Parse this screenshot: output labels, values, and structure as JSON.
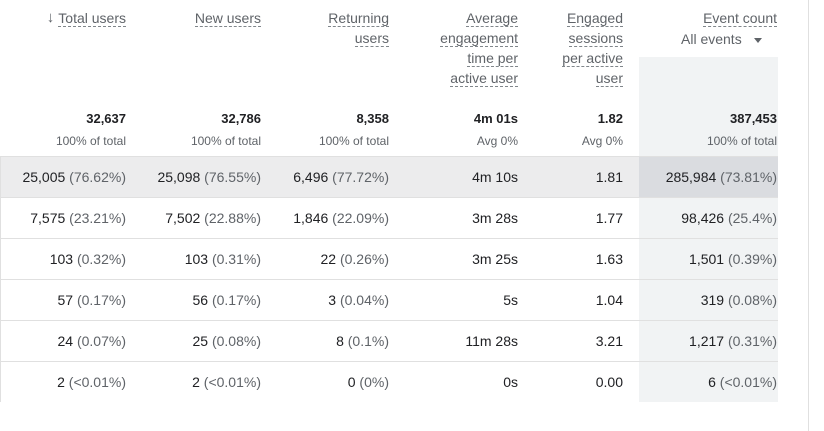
{
  "columns": [
    {
      "key": "total_users",
      "label_lines": [
        "Total users"
      ],
      "sorted": true
    },
    {
      "key": "new_users",
      "label_lines": [
        "New users"
      ]
    },
    {
      "key": "returning_users",
      "label_lines": [
        "Returning",
        "users"
      ]
    },
    {
      "key": "avg_engagement",
      "label_lines": [
        "Average",
        "engagement",
        "time per",
        "active user"
      ]
    },
    {
      "key": "engaged_sessions",
      "label_lines": [
        "Engaged",
        "sessions",
        "per active",
        "user"
      ]
    },
    {
      "key": "event_count",
      "label_lines": [
        "Event count"
      ],
      "selector": "All events"
    }
  ],
  "totals": [
    {
      "value": "32,637",
      "sub": "100% of total"
    },
    {
      "value": "32,786",
      "sub": "100% of total"
    },
    {
      "value": "8,358",
      "sub": "100% of total"
    },
    {
      "value": "4m 01s",
      "sub": "Avg 0%"
    },
    {
      "value": "1.82",
      "sub": "Avg 0%"
    },
    {
      "value": "387,453",
      "sub": "100% of total"
    }
  ],
  "rows": [
    [
      {
        "v": "25,005",
        "p": "(76.62%)"
      },
      {
        "v": "25,098",
        "p": "(76.55%)"
      },
      {
        "v": "6,496",
        "p": "(77.72%)"
      },
      {
        "v": "4m 10s",
        "p": ""
      },
      {
        "v": "1.81",
        "p": ""
      },
      {
        "v": "285,984",
        "p": "(73.81%)"
      }
    ],
    [
      {
        "v": "7,575",
        "p": "(23.21%)"
      },
      {
        "v": "7,502",
        "p": "(22.88%)"
      },
      {
        "v": "1,846",
        "p": "(22.09%)"
      },
      {
        "v": "3m 28s",
        "p": ""
      },
      {
        "v": "1.77",
        "p": ""
      },
      {
        "v": "98,426",
        "p": "(25.4%)"
      }
    ],
    [
      {
        "v": "103",
        "p": "(0.32%)"
      },
      {
        "v": "103",
        "p": "(0.31%)"
      },
      {
        "v": "22",
        "p": "(0.26%)"
      },
      {
        "v": "3m 25s",
        "p": ""
      },
      {
        "v": "1.63",
        "p": ""
      },
      {
        "v": "1,501",
        "p": "(0.39%)"
      }
    ],
    [
      {
        "v": "57",
        "p": "(0.17%)"
      },
      {
        "v": "56",
        "p": "(0.17%)"
      },
      {
        "v": "3",
        "p": "(0.04%)"
      },
      {
        "v": "5s",
        "p": ""
      },
      {
        "v": "1.04",
        "p": ""
      },
      {
        "v": "319",
        "p": "(0.08%)"
      }
    ],
    [
      {
        "v": "24",
        "p": "(0.07%)"
      },
      {
        "v": "25",
        "p": "(0.08%)"
      },
      {
        "v": "8",
        "p": "(0.1%)"
      },
      {
        "v": "11m 28s",
        "p": ""
      },
      {
        "v": "3.21",
        "p": ""
      },
      {
        "v": "1,217",
        "p": "(0.31%)"
      }
    ],
    [
      {
        "v": "2",
        "p": "(<0.01%)"
      },
      {
        "v": "2",
        "p": "(<0.01%)"
      },
      {
        "v": "0",
        "p": "(0%)"
      },
      {
        "v": "0s",
        "p": ""
      },
      {
        "v": "0.00",
        "p": ""
      },
      {
        "v": "6",
        "p": "(<0.01%)"
      }
    ]
  ],
  "icons": {
    "sort": "arrow-down-icon",
    "dropdown": "caret-down-icon"
  }
}
